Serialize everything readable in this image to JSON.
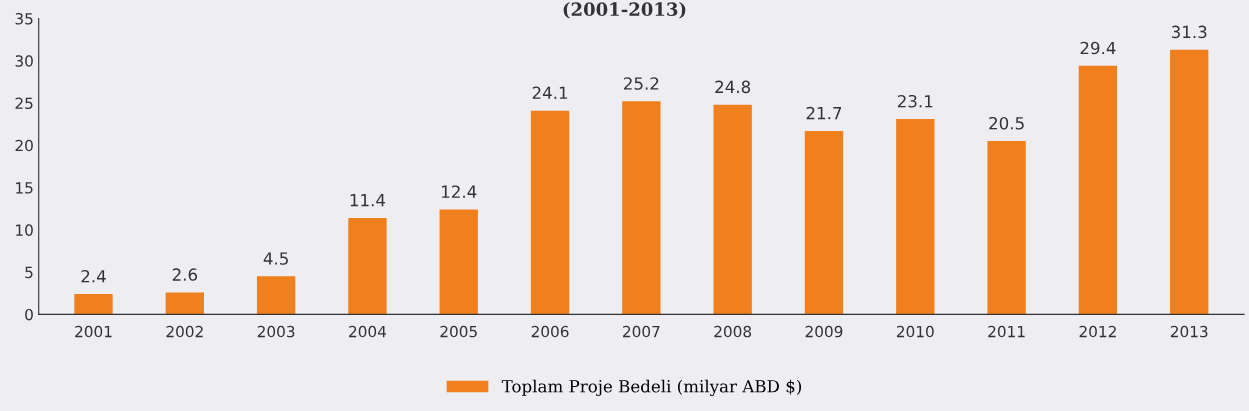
{
  "chart_data": {
    "type": "bar",
    "title": "(2001-2013)",
    "categories": [
      "2001",
      "2002",
      "2003",
      "2004",
      "2005",
      "2006",
      "2007",
      "2008",
      "2009",
      "2010",
      "2011",
      "2012",
      "2013"
    ],
    "series": [
      {
        "name": "Toplam Proje Bedeli (milyar ABD $)",
        "color": "#f0801e",
        "values": [
          2.4,
          2.6,
          4.5,
          11.4,
          12.4,
          24.1,
          25.2,
          24.8,
          21.7,
          23.1,
          20.5,
          29.4,
          31.3
        ]
      }
    ],
    "ylim": [
      0,
      35
    ],
    "yticks": [
      0,
      5,
      10,
      15,
      20,
      25,
      30,
      35
    ],
    "grid": false,
    "legend": "bottom",
    "data_labels": true
  }
}
